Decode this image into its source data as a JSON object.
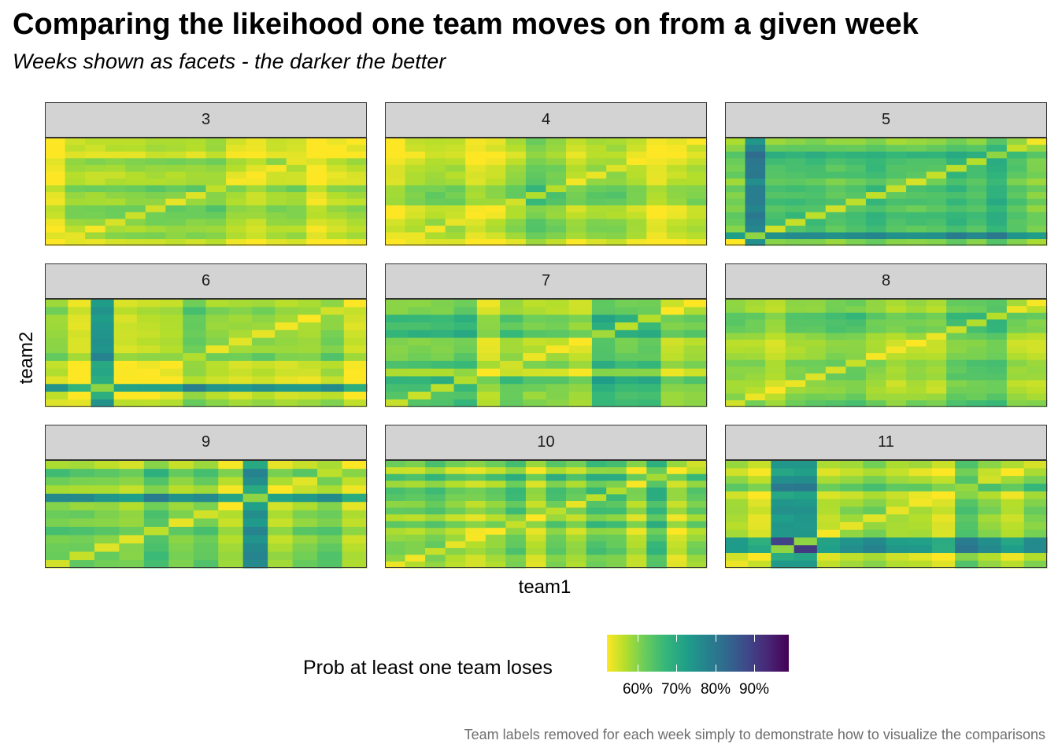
{
  "title": "Comparing the likeihood one team moves on from a given week",
  "subtitle": "Weeks shown as facets - the darker the better",
  "caption": "Team labels removed for each week simply to demonstrate how to visualize the comparisons",
  "chart_data": {
    "type": "heatmap",
    "xlabel": "team1",
    "ylabel": "team2",
    "colorscale": "viridis (reversed: high = dark purple)",
    "legend": {
      "title": "Prob at least one team loses",
      "placement": "bottom",
      "range": [
        0.52,
        0.99
      ],
      "ticks": [
        0.6,
        0.7,
        0.8,
        0.9
      ],
      "tick_labels": [
        "60%",
        "70%",
        "80%",
        "90%"
      ],
      "colors": {
        "low": "#fde725",
        "high": "#440154"
      }
    },
    "facets": [
      {
        "week": "3",
        "n_teams": 16,
        "diagonal_values": [
          0.52,
          0.64,
          0.61,
          0.67,
          0.69,
          0.68,
          0.64,
          0.66,
          0.71,
          0.61,
          0.55,
          0.61,
          0.64,
          0.53,
          0.54,
          0.6
        ]
      },
      {
        "week": "4",
        "n_teams": 16,
        "diagonal_values": [
          0.53,
          0.63,
          0.62,
          0.64,
          0.56,
          0.55,
          0.68,
          0.74,
          0.73,
          0.62,
          0.63,
          0.66,
          0.6,
          0.55,
          0.61,
          0.58
        ]
      },
      {
        "week": "5",
        "n_teams": 16,
        "diagonal_values": [
          0.59,
          0.98,
          0.68,
          0.7,
          0.72,
          0.68,
          0.72,
          0.71,
          0.7,
          0.67,
          0.7,
          0.72,
          0.73,
          0.8,
          0.7,
          0.62
        ]
      },
      {
        "week": "6",
        "n_teams": 14,
        "diagonal_values": [
          0.66,
          0.54,
          0.96,
          0.55,
          0.58,
          0.57,
          0.74,
          0.63,
          0.65,
          0.64,
          0.62,
          0.6,
          0.68,
          0.58
        ]
      },
      {
        "week": "7",
        "n_teams": 14,
        "diagonal_values": [
          0.7,
          0.69,
          0.72,
          0.74,
          0.56,
          0.68,
          0.63,
          0.61,
          0.6,
          0.77,
          0.72,
          0.73,
          0.57,
          0.6
        ]
      },
      {
        "week": "8",
        "n_teams": 16,
        "diagonal_values": [
          0.68,
          0.63,
          0.58,
          0.63,
          0.66,
          0.67,
          0.7,
          0.61,
          0.62,
          0.6,
          0.63,
          0.69,
          0.74,
          0.73,
          0.63,
          0.61
        ]
      },
      {
        "week": "9",
        "n_teams": 13,
        "diagonal_values": [
          0.68,
          0.7,
          0.66,
          0.65,
          0.72,
          0.64,
          0.68,
          0.6,
          0.99,
          0.6,
          0.65,
          0.72,
          0.54
        ]
      },
      {
        "week": "10",
        "n_teams": 16,
        "diagonal_values": [
          0.63,
          0.62,
          0.7,
          0.64,
          0.61,
          0.6,
          0.7,
          0.58,
          0.72,
          0.64,
          0.72,
          0.74,
          0.61,
          0.76,
          0.55,
          0.68
        ]
      },
      {
        "week": "11",
        "n_teams": 14,
        "diagonal_values": [
          0.63,
          0.55,
          0.97,
          0.98,
          0.61,
          0.64,
          0.65,
          0.64,
          0.62,
          0.55,
          0.79,
          0.68,
          0.59,
          0.67
        ]
      }
    ]
  }
}
